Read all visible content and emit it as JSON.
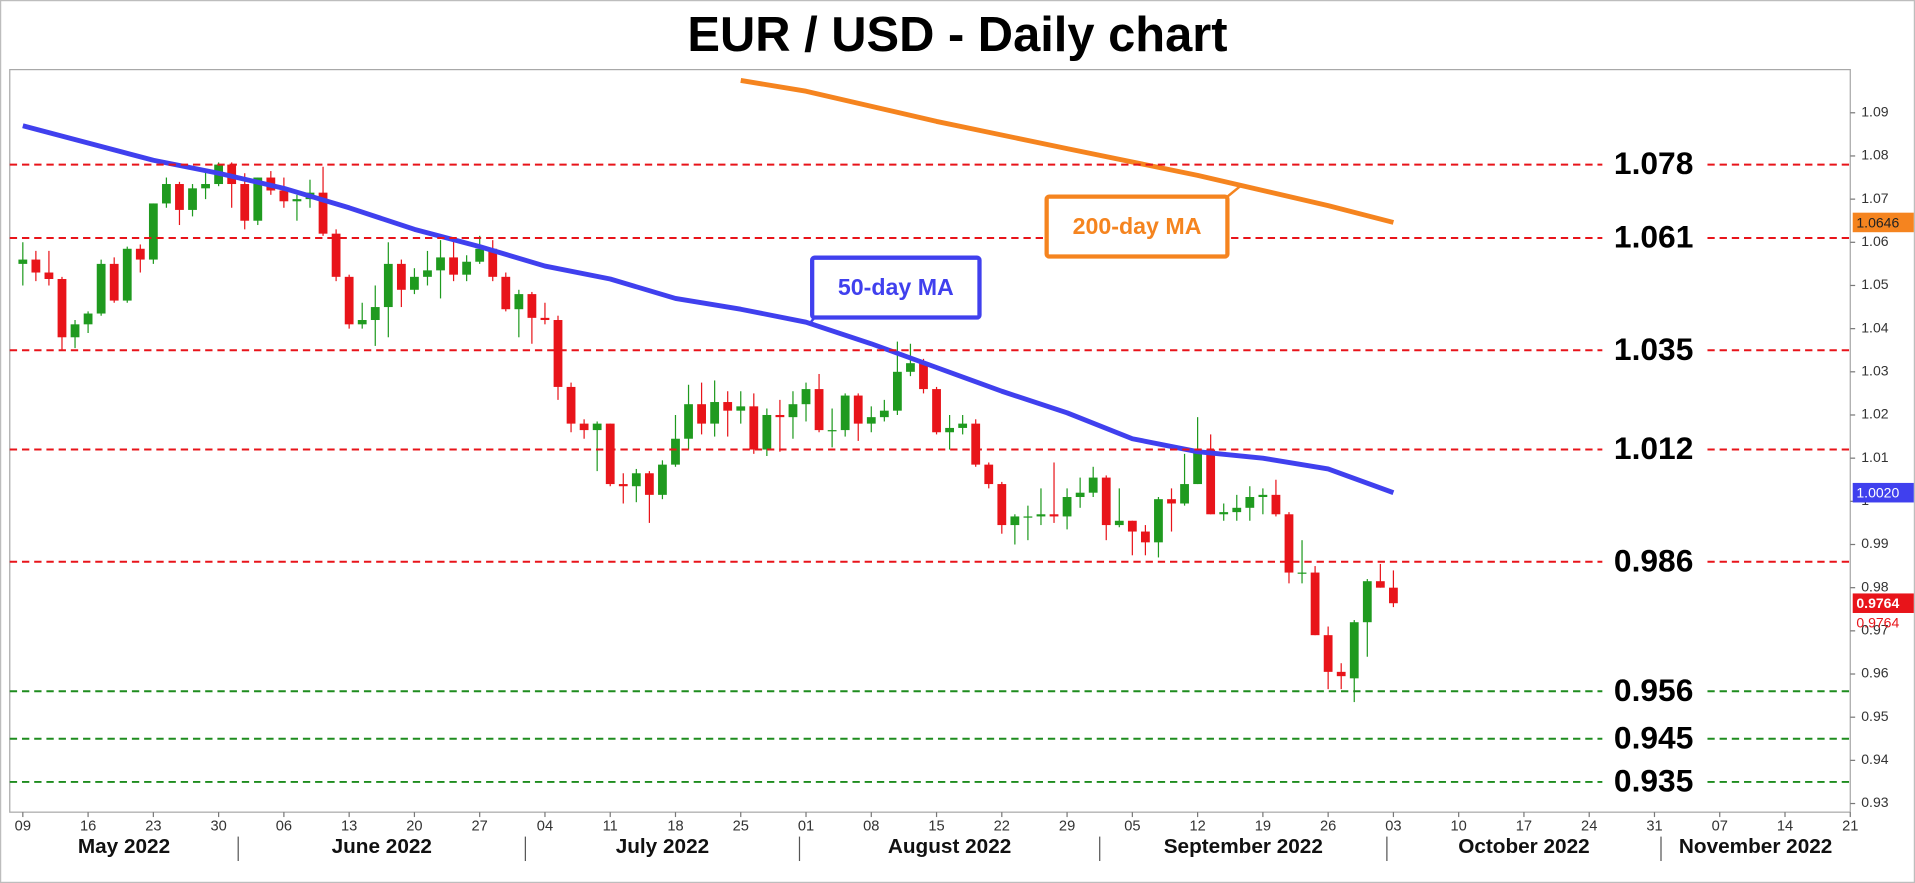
{
  "chart_data": {
    "type": "candlestick",
    "title": "EUR / USD - Daily chart",
    "x": [
      "2022-05-09",
      "2022-05-10",
      "2022-05-11",
      "2022-05-12",
      "2022-05-13",
      "2022-05-16",
      "2022-05-17",
      "2022-05-18",
      "2022-05-19",
      "2022-05-20",
      "2022-05-23",
      "2022-05-24",
      "2022-05-25",
      "2022-05-26",
      "2022-05-27",
      "2022-05-30",
      "2022-05-31",
      "2022-06-01",
      "2022-06-02",
      "2022-06-03",
      "2022-06-06",
      "2022-06-07",
      "2022-06-08",
      "2022-06-09",
      "2022-06-10",
      "2022-06-13",
      "2022-06-14",
      "2022-06-15",
      "2022-06-16",
      "2022-06-17",
      "2022-06-20",
      "2022-06-21",
      "2022-06-22",
      "2022-06-23",
      "2022-06-24",
      "2022-06-27",
      "2022-06-28",
      "2022-06-29",
      "2022-06-30",
      "2022-07-01",
      "2022-07-04",
      "2022-07-05",
      "2022-07-06",
      "2022-07-07",
      "2022-07-08",
      "2022-07-11",
      "2022-07-12",
      "2022-07-13",
      "2022-07-14",
      "2022-07-15",
      "2022-07-18",
      "2022-07-19",
      "2022-07-20",
      "2022-07-21",
      "2022-07-22",
      "2022-07-25",
      "2022-07-26",
      "2022-07-27",
      "2022-07-28",
      "2022-07-29",
      "2022-08-01",
      "2022-08-02",
      "2022-08-03",
      "2022-08-04",
      "2022-08-05",
      "2022-08-08",
      "2022-08-09",
      "2022-08-10",
      "2022-08-11",
      "2022-08-12",
      "2022-08-15",
      "2022-08-16",
      "2022-08-17",
      "2022-08-18",
      "2022-08-19",
      "2022-08-22",
      "2022-08-23",
      "2022-08-24",
      "2022-08-25",
      "2022-08-26",
      "2022-08-29",
      "2022-08-30",
      "2022-08-31",
      "2022-09-01",
      "2022-09-02",
      "2022-09-05",
      "2022-09-06",
      "2022-09-07",
      "2022-09-08",
      "2022-09-09",
      "2022-09-12",
      "2022-09-13",
      "2022-09-14",
      "2022-09-15",
      "2022-09-16",
      "2022-09-19",
      "2022-09-20",
      "2022-09-21",
      "2022-09-22",
      "2022-09-23",
      "2022-09-26",
      "2022-09-27",
      "2022-09-28",
      "2022-09-29",
      "2022-09-30",
      "2022-10-03"
    ],
    "open": [
      1.055,
      1.056,
      1.053,
      1.0515,
      1.038,
      1.041,
      1.0435,
      1.055,
      1.0465,
      1.0585,
      1.056,
      1.069,
      1.0735,
      1.0675,
      1.0725,
      1.0735,
      1.078,
      1.0735,
      1.065,
      1.075,
      1.072,
      1.0695,
      1.07,
      1.0715,
      1.062,
      1.052,
      1.041,
      1.042,
      1.045,
      1.055,
      1.049,
      1.052,
      1.0535,
      1.0565,
      1.0525,
      1.0555,
      1.0585,
      1.052,
      1.0445,
      1.048,
      1.0425,
      1.042,
      1.0265,
      1.018,
      1.0165,
      1.018,
      1.004,
      1.0035,
      1.0065,
      1.0015,
      1.0085,
      1.0145,
      1.0225,
      1.018,
      1.023,
      1.021,
      1.022,
      1.012,
      1.02,
      1.0195,
      1.0225,
      1.026,
      1.0165,
      1.0165,
      1.0245,
      1.018,
      1.0195,
      1.021,
      1.03,
      1.032,
      1.026,
      1.016,
      1.017,
      1.018,
      1.0085,
      1.004,
      0.9945,
      0.9965,
      0.9965,
      0.997,
      0.9965,
      1.001,
      1.002,
      1.0055,
      0.9945,
      0.9955,
      0.993,
      0.9905,
      1.0005,
      0.9995,
      1.004,
      1.012,
      0.997,
      0.9975,
      0.9985,
      1.001,
      1.0015,
      0.997,
      0.9835,
      0.9835,
      0.969,
      0.9605,
      0.959,
      0.972,
      0.9815,
      0.98
    ],
    "high": [
      1.06,
      1.058,
      1.058,
      1.052,
      1.042,
      1.044,
      1.056,
      1.0565,
      1.059,
      1.0595,
      1.069,
      1.075,
      1.074,
      1.0735,
      1.0765,
      1.0785,
      1.0785,
      1.076,
      1.075,
      1.0765,
      1.075,
      1.071,
      1.0745,
      1.0775,
      1.063,
      1.0525,
      1.046,
      1.05,
      1.06,
      1.056,
      1.054,
      1.058,
      1.0605,
      1.061,
      1.057,
      1.0615,
      1.0605,
      1.053,
      1.049,
      1.0485,
      1.046,
      1.043,
      1.0275,
      1.019,
      1.0185,
      1.018,
      1.0065,
      1.0075,
      1.007,
      1.0095,
      1.02,
      1.027,
      1.0275,
      1.028,
      1.0255,
      1.0255,
      1.025,
      1.0215,
      1.0235,
      1.0255,
      1.0275,
      1.0295,
      1.0215,
      1.025,
      1.025,
      1.022,
      1.0235,
      1.037,
      1.0365,
      1.033,
      1.0265,
      1.02,
      1.02,
      1.019,
      1.009,
      1.0045,
      0.997,
      0.999,
      1.003,
      1.009,
      1.003,
      1.0055,
      1.008,
      1.006,
      1.003,
      0.9955,
      0.9945,
      1.001,
      1.003,
      1.011,
      1.0195,
      1.0155,
      0.9995,
      1.0015,
      1.0035,
      1.003,
      1.005,
      0.9975,
      0.991,
      0.985,
      0.971,
      0.9625,
      0.9725,
      0.982,
      0.9855,
      0.984
    ],
    "low": [
      1.05,
      1.051,
      1.05,
      1.035,
      1.0355,
      1.039,
      1.043,
      1.046,
      1.046,
      1.053,
      1.055,
      1.068,
      1.064,
      1.066,
      1.07,
      1.073,
      1.068,
      1.063,
      1.064,
      1.071,
      1.068,
      1.065,
      1.068,
      1.0615,
      1.051,
      1.04,
      1.04,
      1.036,
      1.038,
      1.045,
      1.048,
      1.05,
      1.047,
      1.051,
      1.051,
      1.055,
      1.051,
      1.044,
      1.038,
      1.0365,
      1.041,
      1.0235,
      1.016,
      1.0145,
      1.007,
      1.0035,
      0.9995,
      0.9998,
      0.995,
      1.0005,
      1.008,
      1.012,
      1.0155,
      1.015,
      1.015,
      1.018,
      1.011,
      1.0105,
      1.0115,
      1.0145,
      1.0185,
      1.016,
      1.0125,
      1.015,
      1.014,
      1.016,
      1.0185,
      1.02,
      1.029,
      1.025,
      1.0155,
      1.012,
      1.0155,
      1.008,
      1.003,
      0.9925,
      0.99,
      0.991,
      0.9945,
      0.995,
      0.9935,
      0.9985,
      1.001,
      0.991,
      0.994,
      0.9875,
      0.9875,
      0.987,
      0.993,
      0.999,
      1.004,
      0.997,
      0.9955,
      0.9955,
      0.9955,
      0.997,
      0.9965,
      0.981,
      0.981,
      0.969,
      0.9565,
      0.9565,
      0.9535,
      0.964,
      0.98,
      0.9755
    ],
    "close": [
      1.056,
      1.053,
      1.0515,
      1.038,
      1.041,
      1.0435,
      1.055,
      1.0465,
      1.0585,
      1.056,
      1.069,
      1.0735,
      1.0675,
      1.0725,
      1.0735,
      1.078,
      1.0735,
      1.065,
      1.075,
      1.072,
      1.0695,
      1.07,
      1.0715,
      1.062,
      1.052,
      1.041,
      1.042,
      1.045,
      1.055,
      1.049,
      1.052,
      1.0535,
      1.0565,
      1.0525,
      1.0555,
      1.0585,
      1.052,
      1.0445,
      1.048,
      1.0425,
      1.042,
      1.0265,
      1.018,
      1.0165,
      1.018,
      1.004,
      1.0035,
      1.0065,
      1.0015,
      1.0085,
      1.0145,
      1.0225,
      1.018,
      1.023,
      1.021,
      1.022,
      1.012,
      1.02,
      1.0195,
      1.0225,
      1.026,
      1.0165,
      1.0165,
      1.0245,
      1.018,
      1.0195,
      1.021,
      1.03,
      1.032,
      1.026,
      1.016,
      1.017,
      1.018,
      1.0085,
      1.004,
      0.9945,
      0.9965,
      0.9965,
      0.997,
      0.9965,
      1.001,
      1.002,
      1.0055,
      0.9945,
      0.9955,
      0.993,
      0.9905,
      1.0005,
      0.9995,
      1.004,
      1.012,
      0.997,
      0.9975,
      0.9985,
      1.001,
      1.0015,
      0.997,
      0.9835,
      0.9835,
      0.969,
      0.9605,
      0.9595,
      0.972,
      0.9815,
      0.98,
      0.9764
    ],
    "up_color": "#1f9a1f",
    "down_color": "#e8141a",
    "xlim": [
      "2022-05-06",
      "2022-11-21"
    ],
    "xticks": [
      {
        "value": "2022-05-09",
        "label": "09"
      },
      {
        "value": "2022-05-16",
        "label": "16"
      },
      {
        "value": "2022-05-23",
        "label": "23"
      },
      {
        "value": "2022-05-30",
        "label": "30"
      },
      {
        "value": "2022-06-06",
        "label": "06"
      },
      {
        "value": "2022-06-13",
        "label": "13"
      },
      {
        "value": "2022-06-20",
        "label": "20"
      },
      {
        "value": "2022-06-27",
        "label": "27"
      },
      {
        "value": "2022-07-04",
        "label": "04"
      },
      {
        "value": "2022-07-11",
        "label": "11"
      },
      {
        "value": "2022-07-18",
        "label": "18"
      },
      {
        "value": "2022-07-25",
        "label": "25"
      },
      {
        "value": "2022-08-01",
        "label": "01"
      },
      {
        "value": "2022-08-08",
        "label": "08"
      },
      {
        "value": "2022-08-15",
        "label": "15"
      },
      {
        "value": "2022-08-22",
        "label": "22"
      },
      {
        "value": "2022-08-29",
        "label": "29"
      },
      {
        "value": "2022-09-05",
        "label": "05"
      },
      {
        "value": "2022-09-12",
        "label": "12"
      },
      {
        "value": "2022-09-19",
        "label": "19"
      },
      {
        "value": "2022-09-26",
        "label": "26"
      },
      {
        "value": "2022-10-03",
        "label": "03"
      },
      {
        "value": "2022-10-10",
        "label": "10"
      },
      {
        "value": "2022-10-17",
        "label": "17"
      },
      {
        "value": "2022-10-24",
        "label": "24"
      },
      {
        "value": "2022-10-31",
        "label": "31"
      },
      {
        "value": "2022-11-07",
        "label": "07"
      },
      {
        "value": "2022-11-14",
        "label": "14"
      },
      {
        "value": "2022-11-21",
        "label": "21"
      }
    ],
    "months": [
      {
        "value": "2022-05",
        "label": "May 2022"
      },
      {
        "value": "2022-06",
        "label": "June 2022"
      },
      {
        "value": "2022-07",
        "label": "July 2022"
      },
      {
        "value": "2022-08",
        "label": "August 2022"
      },
      {
        "value": "2022-09",
        "label": "September 2022"
      },
      {
        "value": "2022-10",
        "label": "October 2022"
      },
      {
        "value": "2022-11",
        "label": "November 2022"
      }
    ],
    "ylim": [
      0.928,
      1.1
    ],
    "yticks": [
      0.93,
      0.94,
      0.95,
      0.96,
      0.97,
      0.98,
      0.99,
      1,
      1.01,
      1.02,
      1.03,
      1.04,
      1.05,
      1.06,
      1.07,
      1.08,
      1.09
    ],
    "grid": false,
    "moving_averages": [
      {
        "name": "50-day MA",
        "color": "#4040ee",
        "x": [
          "2022-05-09",
          "2022-05-16",
          "2022-05-23",
          "2022-05-30",
          "2022-06-06",
          "2022-06-13",
          "2022-06-20",
          "2022-06-27",
          "2022-07-04",
          "2022-07-11",
          "2022-07-18",
          "2022-07-25",
          "2022-08-01",
          "2022-08-08",
          "2022-08-15",
          "2022-08-22",
          "2022-08-29",
          "2022-09-05",
          "2022-09-12",
          "2022-09-19",
          "2022-09-26",
          "2022-10-03"
        ],
        "values": [
          1.087,
          1.083,
          1.079,
          1.076,
          1.0725,
          1.068,
          1.063,
          1.059,
          1.0545,
          1.0515,
          1.047,
          1.0445,
          1.0415,
          1.0365,
          1.031,
          1.0255,
          1.0205,
          1.0145,
          1.0115,
          1.01,
          1.0075,
          1.002
        ],
        "last_label": "1.0020"
      },
      {
        "name": "200-day MA",
        "color": "#f5841f",
        "x": [
          "2022-07-25",
          "2022-08-01",
          "2022-08-15",
          "2022-08-29",
          "2022-09-12",
          "2022-09-19",
          "2022-09-26",
          "2022-10-03"
        ],
        "values": [
          1.0975,
          1.095,
          1.088,
          1.0817,
          1.0755,
          1.072,
          1.0685,
          1.0646
        ],
        "last_label": "1.0646"
      }
    ],
    "levels": {
      "resistance": {
        "color": "#e8141a",
        "values": [
          1.078,
          1.061,
          1.035,
          1.012,
          0.986
        ]
      },
      "support": {
        "color": "#1e8c1e",
        "values": [
          0.956,
          0.945,
          0.935
        ]
      }
    }
  }
}
